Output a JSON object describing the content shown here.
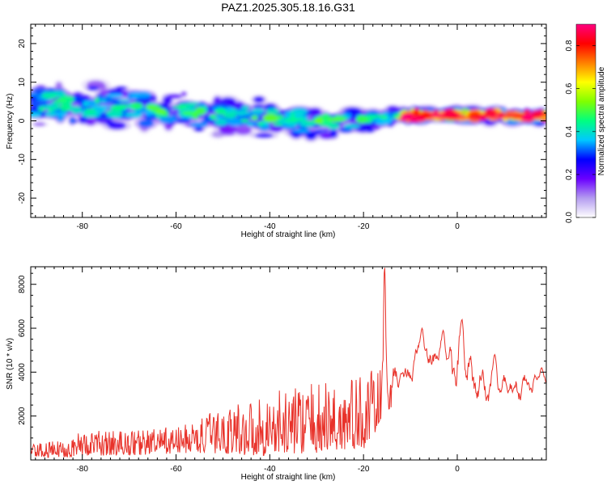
{
  "title": "PAZ1.2025.305.18.16.G31",
  "chart_data": [
    {
      "type": "heatmap",
      "xlabel": "Height of straight line (km)",
      "ylabel": "Frequency (Hz)",
      "xlim": [
        -91,
        19
      ],
      "ylim": [
        -25,
        25
      ],
      "xticks": [
        -80,
        -60,
        -40,
        -20,
        0
      ],
      "yticks": [
        -20,
        -10,
        0,
        10,
        20
      ],
      "colorbar": {
        "label": "Normalized spectral amplitude",
        "range": [
          0,
          0.9
        ],
        "ticks": [
          0,
          0.2,
          0.4,
          0.6,
          0.8
        ],
        "tick_labels": [
          "0.0",
          "0.2",
          "0.4",
          "0.6",
          "0.8"
        ],
        "colors": [
          "#ffffff",
          "#b49cf0",
          "#6a00ff",
          "#0000ff",
          "#00c8ff",
          "#00ff80",
          "#80ff00",
          "#ffff00",
          "#ff8000",
          "#ff0000",
          "#ff0080"
        ]
      },
      "ridge": [
        {
          "x": -89,
          "f": 4.5,
          "spread": 7
        },
        {
          "x": -80,
          "f": 4.0,
          "spread": 7
        },
        {
          "x": -70,
          "f": 3.5,
          "spread": 7
        },
        {
          "x": -60,
          "f": 2.5,
          "spread": 6
        },
        {
          "x": -50,
          "f": 1.5,
          "spread": 6
        },
        {
          "x": -40,
          "f": 0.5,
          "spread": 7
        },
        {
          "x": -30,
          "f": 0.0,
          "spread": 6
        },
        {
          "x": -20,
          "f": 0.0,
          "spread": 4
        },
        {
          "x": -15,
          "f": 1.0,
          "spread": 2.5
        },
        {
          "x": -5,
          "f": 1.5,
          "spread": 2
        },
        {
          "x": 5,
          "f": 1.5,
          "spread": 2
        },
        {
          "x": 19,
          "f": 1.0,
          "spread": 2
        }
      ]
    },
    {
      "type": "line",
      "xlabel": "Height of straight line (km)",
      "ylabel": "SNR (10 * v/v)",
      "xlim": [
        -91,
        19
      ],
      "ylim": [
        0,
        8800
      ],
      "xticks": [
        -80,
        -60,
        -40,
        -20,
        0
      ],
      "yticks": [
        2000,
        4000,
        6000,
        8000
      ],
      "series": [
        {
          "name": "SNR",
          "color": "#e8322a",
          "envelope": [
            {
              "x": -91,
              "lo": 100,
              "hi": 700
            },
            {
              "x": -85,
              "lo": 100,
              "hi": 900
            },
            {
              "x": -80,
              "lo": 200,
              "hi": 1300
            },
            {
              "x": -70,
              "lo": 200,
              "hi": 1400
            },
            {
              "x": -60,
              "lo": 300,
              "hi": 1500
            },
            {
              "x": -55,
              "lo": 300,
              "hi": 1900
            },
            {
              "x": -50,
              "lo": 300,
              "hi": 2400
            },
            {
              "x": -45,
              "lo": 200,
              "hi": 2800
            },
            {
              "x": -40,
              "lo": 200,
              "hi": 3000
            },
            {
              "x": -35,
              "lo": 300,
              "hi": 3400
            },
            {
              "x": -30,
              "lo": 300,
              "hi": 3500
            },
            {
              "x": -25,
              "lo": 300,
              "hi": 3700
            },
            {
              "x": -20,
              "lo": 500,
              "hi": 3900
            },
            {
              "x": -17,
              "lo": 1200,
              "hi": 4200
            },
            {
              "x": -14,
              "lo": 2400,
              "hi": 4300
            },
            {
              "x": -10,
              "lo": 3500,
              "hi": 4600
            },
            {
              "x": -6,
              "lo": 3800,
              "hi": 5500
            },
            {
              "x": -2,
              "lo": 3800,
              "hi": 5300
            },
            {
              "x": 1,
              "lo": 2500,
              "hi": 5200
            },
            {
              "x": 4,
              "lo": 2300,
              "hi": 4100
            },
            {
              "x": 10,
              "lo": 2500,
              "hi": 3900
            },
            {
              "x": 15,
              "lo": 2800,
              "hi": 3900
            },
            {
              "x": 19,
              "lo": 3200,
              "hi": 3800
            }
          ],
          "peaks": [
            {
              "x": -15.5,
              "y": 8800
            },
            {
              "x": -7.5,
              "y": 6000
            },
            {
              "x": -3,
              "y": 5900
            },
            {
              "x": 1,
              "y": 6400
            },
            {
              "x": 8,
              "y": 4800
            },
            {
              "x": 18,
              "y": 4200
            }
          ]
        }
      ]
    }
  ]
}
